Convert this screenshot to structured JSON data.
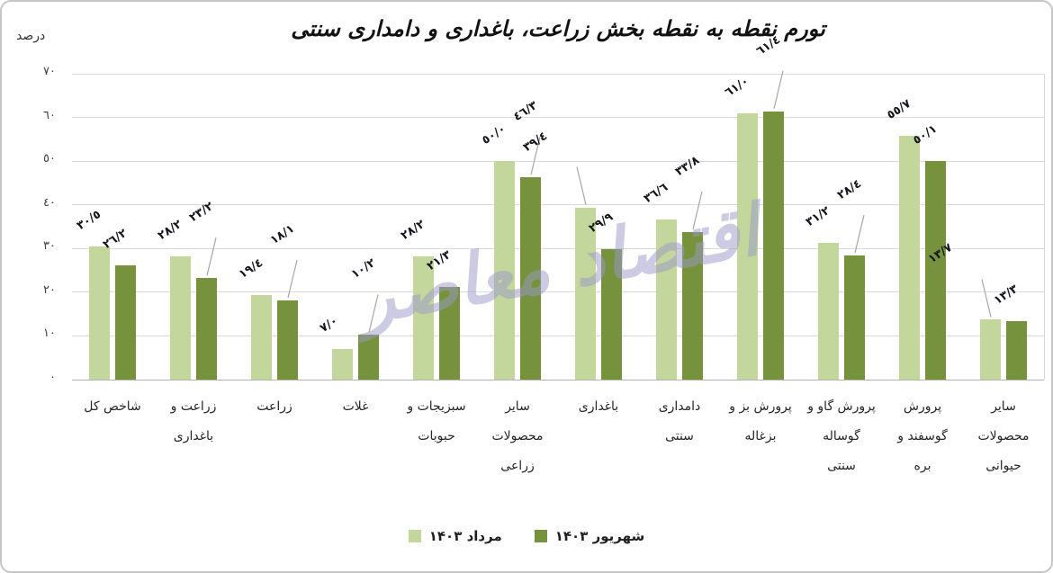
{
  "chart": {
    "title": "تورم نقطه به نقطه بخش زراعت، باغداری و دامداری سنتی",
    "unit_label": "درصد"
  },
  "watermark": {
    "text": "اقتصاد معاصر",
    "color": "#9d99c9"
  },
  "colors": {
    "series_light": "#c3d69b",
    "series_dark": "#76923c",
    "gridline": "#dadada",
    "label_text": "#15151f",
    "frame_border": "#c6c6c6"
  },
  "chart_data": {
    "type": "bar",
    "title": "تورم نقطه به نقطه بخش زراعت، باغداری و دامداری سنتی",
    "xlabel": "",
    "ylabel": "درصد",
    "ylim": [
      0,
      70
    ],
    "grid": true,
    "legend_position": "bottom",
    "ytick_values": [
      0,
      10,
      20,
      30,
      40,
      50,
      60,
      70
    ],
    "ytick_labels": [
      "٠",
      "١٠",
      "٢٠",
      "٣٠",
      "٤٠",
      "٥٠",
      "٦٠",
      "٧٠"
    ],
    "categories": [
      "شاخص کل",
      "زراعت و باغداری",
      "زراعت",
      "غلات",
      "سبزیجات و حبوبات",
      "سایر محصولات زراعی",
      "باغداری",
      "دامداری سنتی",
      "پرورش بز و بزغاله",
      "پرورش گاو و گوساله سنتی",
      "پرورش گوسفند و بره",
      "سایر محصولات حیوانی"
    ],
    "category_display_lines": [
      [
        "شاخص کل"
      ],
      [
        "زراعت و",
        "باغداری"
      ],
      [
        "زراعت"
      ],
      [
        "غلات"
      ],
      [
        "سبزیجات و",
        "حبوبات"
      ],
      [
        "سایر",
        "محصولات",
        "زراعی"
      ],
      [
        "باغداری"
      ],
      [
        "دامداری",
        "سنتی"
      ],
      [
        "پرورش بز و",
        "بزغاله"
      ],
      [
        "پرورش گاو و",
        "گوساله",
        "سنتی"
      ],
      [
        "پرورش",
        "گوسفند و",
        "بره"
      ],
      [
        "سایر",
        "محصولات",
        "حیوانی"
      ]
    ],
    "series": [
      {
        "name": "مرداد ۱۴۰۳",
        "color": "#c3d69b",
        "values": [
          30.5,
          28.2,
          19.4,
          7.0,
          28.2,
          50.0,
          39.4,
          36.6,
          61.0,
          31.2,
          55.7,
          13.7
        ],
        "labels": [
          "٣٠/٥",
          "٢٨/٢",
          "١٩/٤",
          "٧/٠",
          "٢٨/٢",
          "٥٠/٠",
          "٣٩/٤",
          "٣٦/٦",
          "٦١/٠",
          "٣١/٢",
          "٥٥/٧",
          "١٣/٧"
        ],
        "label_leaders": [
          false,
          false,
          false,
          false,
          false,
          false,
          true,
          false,
          false,
          false,
          false,
          true
        ]
      },
      {
        "name": "شهریور ۱۴۰۳",
        "color": "#76923c",
        "values": [
          26.2,
          23.2,
          18.1,
          10.2,
          21.3,
          46.3,
          29.9,
          33.8,
          61.4,
          28.4,
          50.1,
          13.3
        ],
        "labels": [
          "٢٦/٢",
          "٢٣/٢",
          "١٨/١",
          "١٠/٢",
          "٢١/٣",
          "٤٦/٣",
          "٢٩/٩",
          "٣٣/٨",
          "٦١/٤",
          "٢٨/٤",
          "٥٠/١",
          "١٣/٣"
        ],
        "label_leaders": [
          false,
          true,
          true,
          true,
          false,
          true,
          false,
          true,
          true,
          true,
          false,
          false
        ]
      }
    ]
  }
}
